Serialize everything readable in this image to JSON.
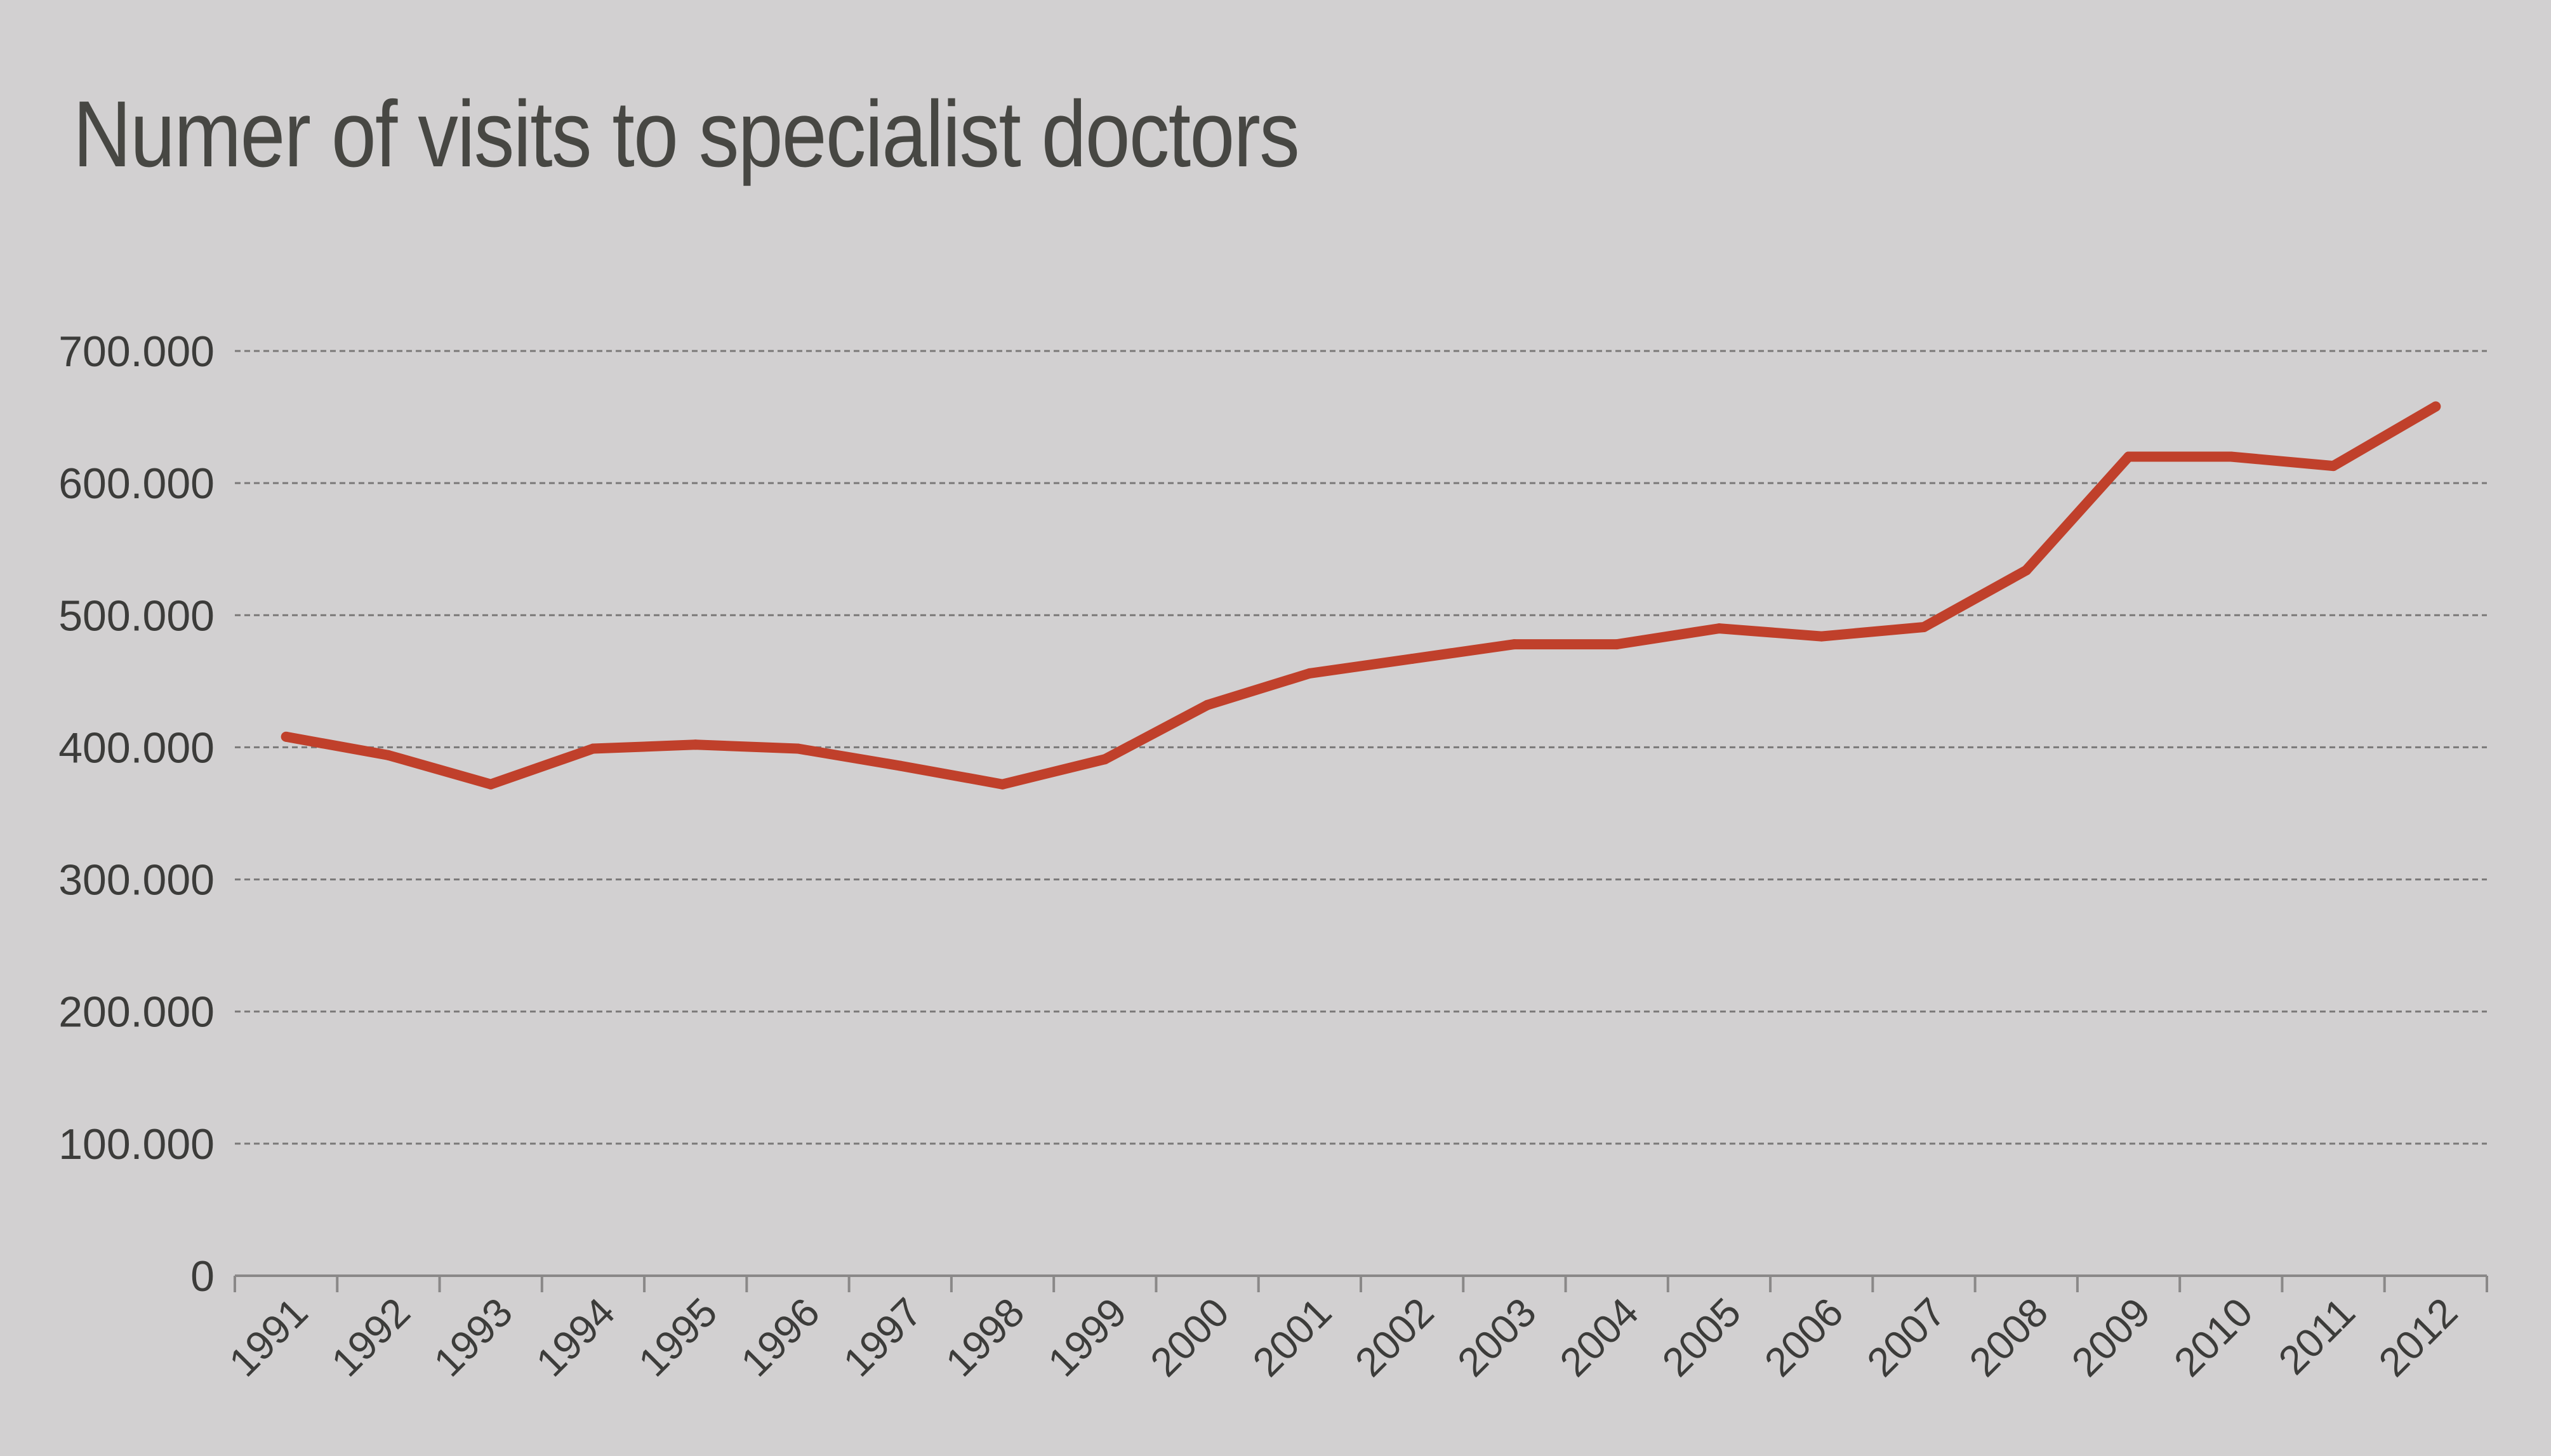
{
  "chart_data": {
    "type": "line",
    "title": "Numer of visits to specialist doctors",
    "xlabel": "",
    "ylabel": "",
    "categories": [
      "1991",
      "1992",
      "1993",
      "1994",
      "1995",
      "1996",
      "1997",
      "1998",
      "1999",
      "2000",
      "2001",
      "2002",
      "2003",
      "2004",
      "2005",
      "2006",
      "2007",
      "2008",
      "2009",
      "2010",
      "2011",
      "2012"
    ],
    "yticks": [
      0,
      100000,
      200000,
      300000,
      400000,
      500000,
      600000,
      700000
    ],
    "ytick_labels": [
      "0",
      "100.000",
      "200.000",
      "300.000",
      "400.000",
      "500.000",
      "600.000",
      "700.000"
    ],
    "ylim": [
      0,
      700000
    ],
    "grid": true,
    "grid_style": "dashed-horizontal",
    "legend": "none",
    "series": [
      {
        "color": "#c0402b",
        "values": [
          408000,
          394000,
          372000,
          399000,
          402000,
          399000,
          386000,
          372000,
          391000,
          432000,
          456000,
          467000,
          478000,
          478000,
          490000,
          484000,
          491000,
          534000,
          620000,
          620000,
          613000,
          658000
        ]
      }
    ],
    "colors": {
      "background": "#d2d0d1",
      "line": "#c0402b",
      "text": "#3c3c3a",
      "title": "#474743",
      "grid": "#7a7878",
      "axis": "#8a8888"
    }
  }
}
